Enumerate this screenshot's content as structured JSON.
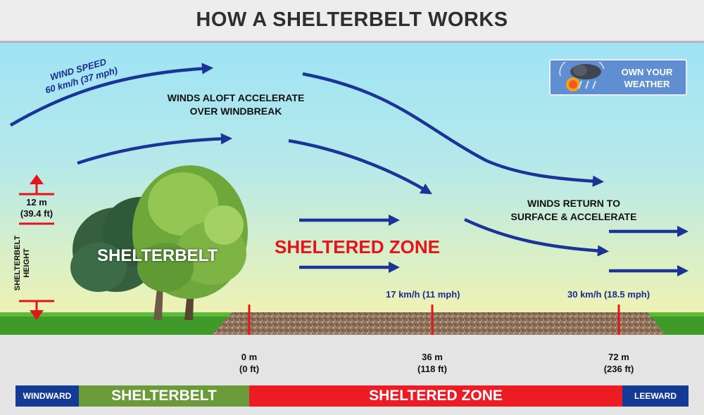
{
  "title": "HOW A SHELTERBELT WORKS",
  "badge": {
    "line1": "OWN YOUR",
    "line2": "WEATHER"
  },
  "wind_speed": {
    "line1": "WIND SPEED",
    "line2": "60 km/h (37 mph)"
  },
  "aloft": {
    "line1": "WINDS ALOFT ACCELERATE",
    "line2": "OVER WINDBREAK"
  },
  "return": {
    "line1": "WINDS RETURN TO",
    "line2": "SURFACE & ACCELERATE"
  },
  "height": {
    "value_m": "12 m",
    "value_ft": "(39.4 ft)",
    "label1": "SHELTERBELT",
    "label2": "HEIGHT"
  },
  "shelterbelt_label": "SHELTERBELT",
  "sheltered_zone_label": "SHELTERED ZONE",
  "speed_36": "17 km/h (11 mph)",
  "speed_72": "30 km/h (18.5 mph)",
  "distances": [
    {
      "m": "0 m",
      "ft": "(0 ft)"
    },
    {
      "m": "36 m",
      "ft": "(118 ft)"
    },
    {
      "m": "72 m",
      "ft": "(236 ft)"
    }
  ],
  "bar": {
    "windward": "WINDWARD",
    "shelterbelt": "SHELTERBELT",
    "sheltered_zone": "SHELTERED ZONE",
    "leeward": "LEEWARD"
  },
  "colors": {
    "wind_arrow": "#1a3596",
    "marker_red": "#e4141b",
    "bar_green": "#6a9a3a",
    "bar_red": "#ed1c24",
    "bar_blue": "#133b96"
  }
}
